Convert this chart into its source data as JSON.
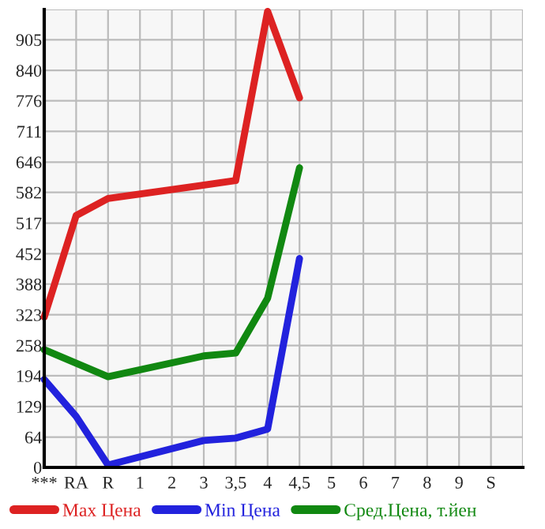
{
  "chart_data": {
    "type": "line",
    "categories": [
      "***",
      "RA",
      "R",
      "1",
      "2",
      "3",
      "3,5",
      "4",
      "4,5",
      "5",
      "6",
      "7",
      "8",
      "9",
      "S",
      null
    ],
    "series": [
      {
        "name": "Max Цена",
        "color": "#dd2222",
        "values": [
          318,
          533,
          569,
          null,
          null,
          null,
          607,
          965,
          782,
          null,
          null,
          null,
          null,
          null,
          null,
          null
        ]
      },
      {
        "name": "Min Цена",
        "color": "#2222dd",
        "values": [
          186,
          108,
          5,
          null,
          null,
          57,
          62,
          81,
          442,
          null,
          null,
          null,
          null,
          null,
          null,
          null
        ]
      },
      {
        "name": "Сред.Цена, т.йен",
        "color": "#118811",
        "values": [
          249,
          null,
          192,
          null,
          null,
          236,
          242,
          358,
          634,
          null,
          null,
          null,
          null,
          null,
          null,
          null
        ]
      }
    ],
    "ylim": [
      0,
      969
    ],
    "yticks": [
      0,
      64,
      129,
      194,
      258,
      323,
      388,
      452,
      517,
      582,
      646,
      711,
      776,
      840,
      905,
      {
        "value": 969,
        "label": null
      }
    ],
    "grid": true,
    "legend": "bottom",
    "marker": "none",
    "line_style": "solid"
  }
}
